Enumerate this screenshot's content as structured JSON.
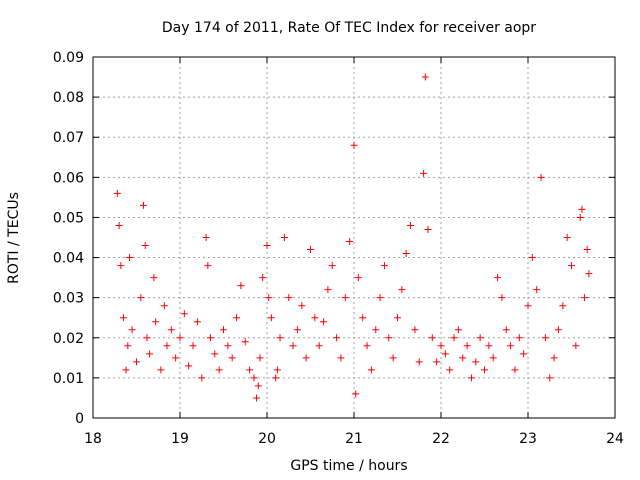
{
  "chart_data": {
    "type": "scatter",
    "title": "Day 174 of 2011, Rate Of TEC Index for receiver aopr",
    "xlabel": "GPS time / hours",
    "ylabel": "ROTI / TECUs",
    "xlim": [
      18,
      24
    ],
    "ylim": [
      0,
      0.09
    ],
    "xticks": [
      "18",
      "19",
      "20",
      "21",
      "22",
      "23",
      "24"
    ],
    "yticks": [
      "0",
      "0.01",
      "0.02",
      "0.03",
      "0.04",
      "0.05",
      "0.06",
      "0.07",
      "0.08",
      "0.09"
    ],
    "grid": true,
    "marker": "+",
    "color": "#ff0000",
    "series": [
      {
        "name": "ROTI",
        "x": [
          18.28,
          18.3,
          18.32,
          18.35,
          18.38,
          18.4,
          18.42,
          18.45,
          18.5,
          18.55,
          18.58,
          18.6,
          18.62,
          18.65,
          18.7,
          18.72,
          18.78,
          18.82,
          18.85,
          18.9,
          18.95,
          19.0,
          19.05,
          19.1,
          19.15,
          19.2,
          19.25,
          19.3,
          19.32,
          19.35,
          19.4,
          19.45,
          19.5,
          19.55,
          19.6,
          19.65,
          19.7,
          19.75,
          19.8,
          19.85,
          19.88,
          19.9,
          19.92,
          19.95,
          20.0,
          20.02,
          20.05,
          20.1,
          20.12,
          20.15,
          20.2,
          20.25,
          20.3,
          20.35,
          20.4,
          20.45,
          20.5,
          20.55,
          20.6,
          20.65,
          20.7,
          20.75,
          20.8,
          20.85,
          20.9,
          20.95,
          21.0,
          21.02,
          21.05,
          21.1,
          21.15,
          21.2,
          21.25,
          21.3,
          21.35,
          21.4,
          21.45,
          21.5,
          21.55,
          21.6,
          21.65,
          21.7,
          21.75,
          21.8,
          21.82,
          21.85,
          21.9,
          21.95,
          22.0,
          22.05,
          22.1,
          22.15,
          22.2,
          22.25,
          22.3,
          22.35,
          22.4,
          22.45,
          22.5,
          22.55,
          22.6,
          22.65,
          22.7,
          22.75,
          22.8,
          22.85,
          22.9,
          22.95,
          23.0,
          23.05,
          23.1,
          23.15,
          23.2,
          23.25,
          23.3,
          23.35,
          23.4,
          23.45,
          23.5,
          23.55,
          23.6,
          23.62,
          23.65,
          23.68,
          23.7
        ],
        "y": [
          0.056,
          0.048,
          0.038,
          0.025,
          0.012,
          0.018,
          0.04,
          0.022,
          0.014,
          0.03,
          0.053,
          0.043,
          0.02,
          0.016,
          0.035,
          0.024,
          0.012,
          0.028,
          0.018,
          0.022,
          0.015,
          0.02,
          0.026,
          0.013,
          0.018,
          0.024,
          0.01,
          0.045,
          0.038,
          0.02,
          0.016,
          0.012,
          0.022,
          0.018,
          0.015,
          0.025,
          0.033,
          0.019,
          0.012,
          0.01,
          0.005,
          0.008,
          0.015,
          0.035,
          0.043,
          0.03,
          0.025,
          0.01,
          0.012,
          0.02,
          0.045,
          0.03,
          0.018,
          0.022,
          0.028,
          0.015,
          0.042,
          0.025,
          0.018,
          0.024,
          0.032,
          0.038,
          0.02,
          0.015,
          0.03,
          0.044,
          0.068,
          0.006,
          0.035,
          0.025,
          0.018,
          0.012,
          0.022,
          0.03,
          0.038,
          0.02,
          0.015,
          0.025,
          0.032,
          0.041,
          0.048,
          0.022,
          0.014,
          0.061,
          0.085,
          0.047,
          0.02,
          0.014,
          0.018,
          0.016,
          0.012,
          0.02,
          0.022,
          0.015,
          0.018,
          0.01,
          0.014,
          0.02,
          0.012,
          0.018,
          0.015,
          0.035,
          0.03,
          0.022,
          0.018,
          0.012,
          0.02,
          0.016,
          0.028,
          0.04,
          0.032,
          0.06,
          0.02,
          0.01,
          0.015,
          0.022,
          0.028,
          0.045,
          0.038,
          0.018,
          0.05,
          0.052,
          0.03,
          0.042,
          0.036
        ]
      }
    ]
  }
}
